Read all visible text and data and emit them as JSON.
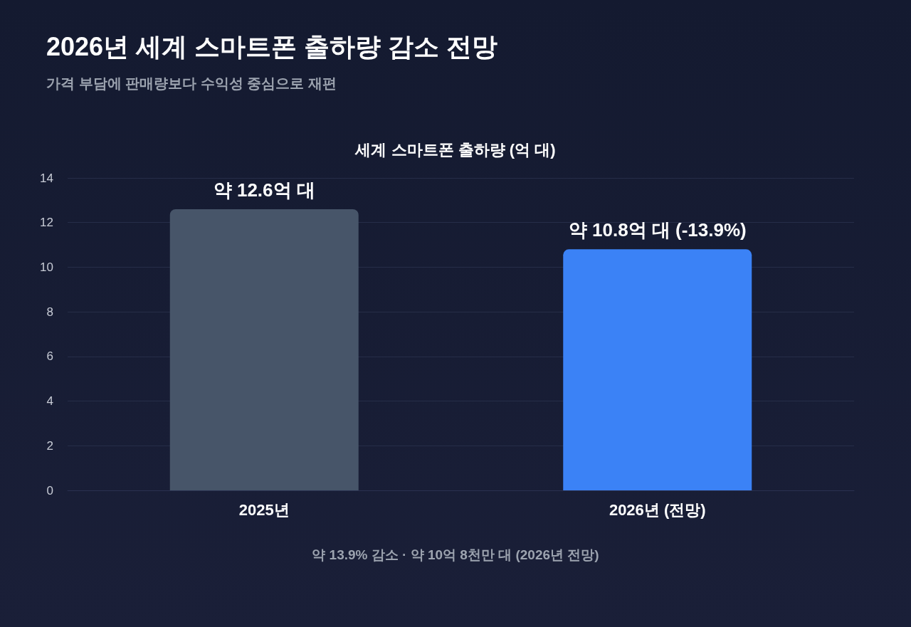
{
  "chart_data": {
    "type": "bar",
    "title": "2026년 세계 스마트폰 출하량 감소 전망",
    "subtitle": "가격 부담에 판매량보다 수익성 중심으로 재편",
    "ylabel": "세계 스마트폰 출하량 (억 대)",
    "categories": [
      "2025년",
      "2026년 (전망)"
    ],
    "values": [
      12.6,
      10.8
    ],
    "colors": [
      "#475569",
      "#3b82f6"
    ],
    "value_labels": [
      "약 12.6억 대",
      "약 10.8억 대 (-13.9%)"
    ],
    "ylim": [
      0,
      14
    ],
    "yticks": [
      0,
      2,
      4,
      6,
      8,
      10,
      12,
      14
    ],
    "grid": "y",
    "annotations": [
      "약 13.9% 감소 · 약 10억 8천만 대 (2026년 전망)"
    ]
  }
}
